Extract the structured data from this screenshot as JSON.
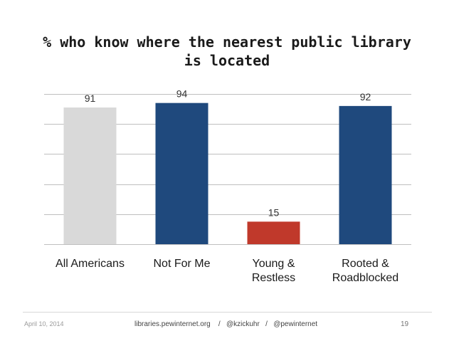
{
  "title_lines": [
    "% who know where the nearest public library",
    "is located"
  ],
  "chart_data": {
    "type": "bar",
    "title": "% who know where the nearest public library is located",
    "categories": [
      [
        "All Americans"
      ],
      [
        "Not For Me"
      ],
      [
        "Young &",
        "Restless"
      ],
      [
        "Rooted &",
        "Roadblocked"
      ]
    ],
    "values": [
      91,
      94,
      15,
      92
    ],
    "bar_colors": [
      "#d9d9d9",
      "#1f497d",
      "#c0392b",
      "#1f497d"
    ],
    "ylim": [
      0,
      100
    ],
    "grid": true,
    "gridline_color": "#bfbfbf"
  },
  "footer": {
    "date": "April 10, 2014",
    "links": "libraries.pewinternet.org    /   @kzickuhr   /   @pewinternet",
    "page": "19"
  }
}
